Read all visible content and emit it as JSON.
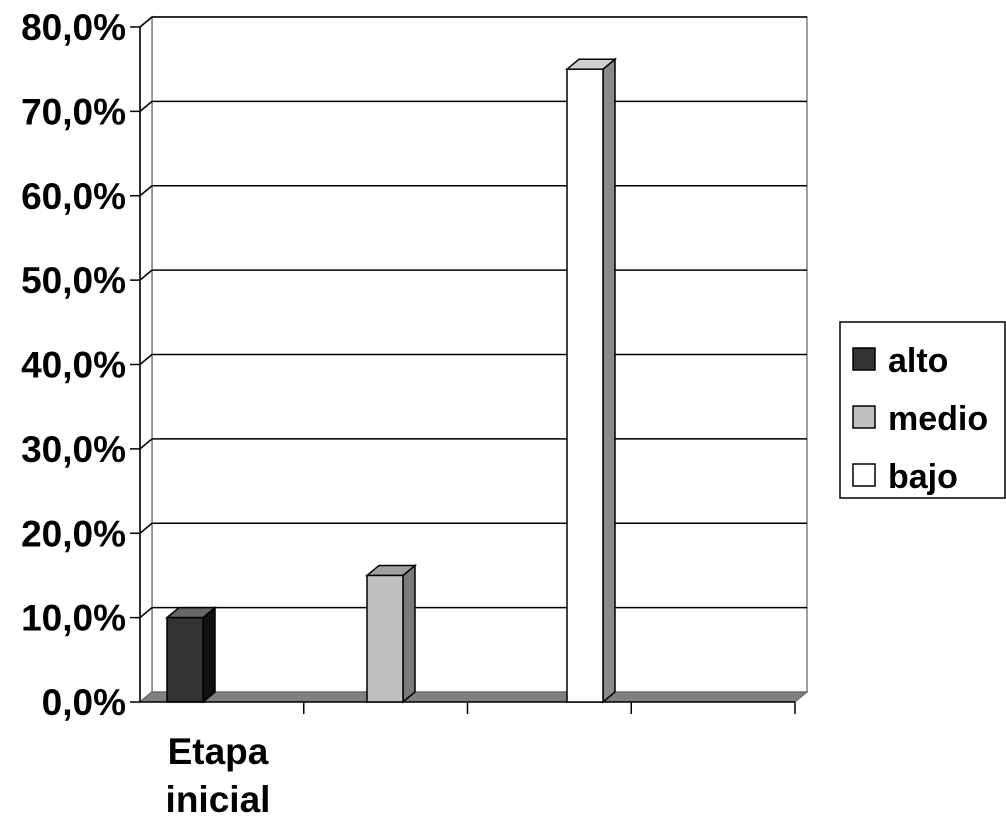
{
  "chart_data": {
    "type": "bar",
    "categories": [
      "Etapa inicial"
    ],
    "category_label_lines": [
      "Etapa",
      "inicial"
    ],
    "series": [
      {
        "name": "alto",
        "values": [
          0.1
        ],
        "color": "#333333"
      },
      {
        "name": "medio",
        "values": [
          0.15
        ],
        "color": "#c0c0c0"
      },
      {
        "name": "bajo",
        "values": [
          0.75
        ],
        "color": "#ffffff"
      }
    ],
    "ylim": [
      0,
      0.8
    ],
    "yticks": [
      "0,0%",
      "10,0%",
      "20,0%",
      "30,0%",
      "40,0%",
      "50,0%",
      "60,0%",
      "70,0%",
      "80,0%"
    ],
    "grid": true,
    "legend": "right",
    "style": "3d-column",
    "title": "",
    "xlabel": "",
    "ylabel": ""
  }
}
